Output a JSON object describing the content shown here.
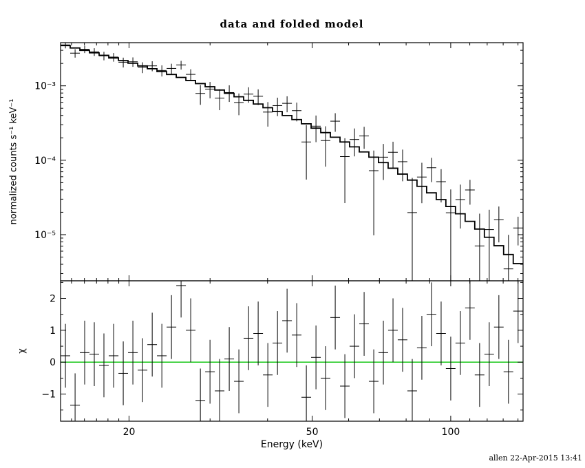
{
  "page": {
    "title": "data and folded model",
    "footer": "allen 22-Apr-2015 13:41",
    "xlabel": "Energy (keV)",
    "ylabel_top": "normalized counts s⁻¹ keV⁻¹",
    "ylabel_bottom": "χ"
  },
  "colors": {
    "foreground": "#000000",
    "zero_line": "#00c000",
    "background": "#ffffff"
  },
  "chart_data": {
    "type": "scatter",
    "title": "data and folded model",
    "xlabel": "Energy (keV)",
    "xscale": "log",
    "xlim": [
      14.2,
      143.6
    ],
    "xticks": [
      {
        "v": 20,
        "label": "20"
      },
      {
        "v": 50,
        "label": "50"
      },
      {
        "v": 100,
        "label": "100"
      }
    ],
    "xticks_minor": [
      15,
      16,
      17,
      18,
      19,
      30,
      40,
      60,
      70,
      80,
      90,
      110,
      120,
      130,
      140
    ],
    "bin_edges": [
      14.2,
      14.9,
      15.64,
      16.41,
      17.22,
      18.07,
      18.97,
      19.9,
      20.89,
      21.92,
      23.0,
      24.14,
      25.33,
      26.58,
      27.89,
      29.27,
      30.72,
      32.23,
      33.82,
      35.49,
      37.25,
      39.09,
      41.02,
      43.04,
      45.17,
      47.39,
      49.73,
      52.19,
      54.76,
      57.47,
      60.3,
      63.28,
      66.4,
      69.67,
      73.11,
      76.72,
      80.5,
      84.47,
      88.64,
      93.01,
      97.6,
      102.41,
      107.47,
      112.77,
      118.33,
      124.16,
      130.29,
      136.71,
      143.45
    ],
    "x": [
      14.55,
      15.27,
      16.02,
      16.81,
      17.64,
      18.52,
      19.43,
      20.39,
      21.4,
      22.46,
      23.57,
      24.73,
      25.95,
      27.23,
      28.58,
      29.99,
      31.47,
      33.02,
      34.65,
      36.37,
      38.16,
      40.05,
      42.03,
      44.1,
      46.28,
      48.56,
      50.96,
      53.47,
      56.11,
      58.88,
      61.79,
      64.84,
      68.04,
      71.39,
      74.92,
      78.61,
      82.49,
      86.55,
      90.83,
      95.31,
      100.01,
      104.94,
      110.12,
      115.55,
      121.25,
      127.23,
      133.5,
      140.08
    ],
    "panels": [
      {
        "name": "spectrum",
        "ylabel": "normalized counts s⁻¹ keV⁻¹",
        "yscale": "log",
        "ylim": [
          2.4e-06,
          0.0038
        ],
        "yticks": [
          {
            "v": 0.001,
            "label": "10⁻³"
          },
          {
            "v": 0.0001,
            "label": "10⁻⁴"
          },
          {
            "v": 1e-05,
            "label": "10⁻⁵"
          }
        ],
        "yticks_minor": [
          3e-06,
          4e-06,
          5e-06,
          6e-06,
          7e-06,
          8e-06,
          9e-06,
          2e-05,
          3e-05,
          4e-05,
          5e-05,
          6e-05,
          7e-05,
          8e-05,
          9e-05,
          0.0002,
          0.0003,
          0.0004,
          0.0005,
          0.0006,
          0.0007,
          0.0008,
          0.0009,
          0.002,
          0.003
        ],
        "series": [
          {
            "name": "data",
            "style": "cross",
            "y": [
              0.003546,
              0.002747,
              0.003098,
              0.002859,
              0.002533,
              0.002433,
              0.002077,
              0.002104,
              0.001776,
              0.001854,
              0.001609,
              0.001713,
              0.00191,
              0.001425,
              0.00079,
              0.000904,
              0.000685,
              0.000812,
              0.000596,
              0.000774,
              0.000724,
              0.000444,
              0.000542,
              0.000582,
              0.000464,
              0.000176,
              0.000287,
              0.000184,
              0.000335,
              0.000112,
              0.00019,
              0.000212,
              7.24e-05,
              0.00011,
              0.000128,
              9.56e-05,
              1.98e-05,
              5.95e-05,
              7.93e-05,
              5.15e-05,
              1.97e-05,
              2.96e-05,
              3.99e-05,
              7.06e-06,
              1.17e-05,
              1.59e-05,
              3.47e-06,
              1.23e-05
            ],
            "yerr": [
              0.000361,
              0.000355,
              0.000347,
              0.000338,
              0.000331,
              0.000322,
              0.000313,
              0.000304,
              0.000294,
              0.000285,
              0.000275,
              0.000266,
              0.000256,
              0.000245,
              0.000235,
              0.000224,
              0.000214,
              0.000204,
              0.000193,
              0.000182,
              0.000172,
              0.000161,
              0.000151,
              0.000141,
              0.000131,
              0.000121,
              0.000112,
              0.000102,
              9.38e-05,
              8.54e-05,
              7.73e-05,
              6.95e-05,
              6.26e-05,
              5.57e-05,
              4.94e-05,
              4.34e-05,
              3.81e-05,
              3.3e-05,
              2.85e-05,
              2.44e-05,
              2.08e-05,
              1.75e-05,
              1.46e-05,
              1.21e-05,
              9.92e-06,
              8.02e-06,
              6.47e-06,
              5.13e-06
            ]
          },
          {
            "name": "folded model",
            "style": "step",
            "y": [
              0.003474,
              0.003226,
              0.002994,
              0.002774,
              0.002566,
              0.002369,
              0.002186,
              0.002013,
              0.00185,
              0.001697,
              0.001554,
              0.001421,
              0.001297,
              0.00118,
              0.001072,
              0.000971,
              0.000878,
              0.000792,
              0.000712,
              0.000638,
              0.00057,
              0.000508,
              0.000451,
              0.000399,
              0.000352,
              0.000309,
              0.00027,
              0.000235,
              0.000204,
              0.000176,
              0.0001514,
              0.0001294,
              0.00011,
              9.3e-05,
              7.81e-05,
              6.52e-05,
              5.41e-05,
              4.46e-05,
              3.65e-05,
              2.96e-05,
              2.39e-05,
              1.91e-05,
              1.51e-05,
              1.19e-05,
              9.23e-06,
              7.1e-06,
              5.41e-06,
              4.08e-06
            ]
          }
        ]
      },
      {
        "name": "residuals",
        "ylabel": "χ",
        "yscale": "linear",
        "ylim": [
          -1.85,
          2.55
        ],
        "yticks": [
          {
            "v": -1,
            "label": "−1"
          },
          {
            "v": 0,
            "label": "0"
          },
          {
            "v": 1,
            "label": "1"
          },
          {
            "v": 2,
            "label": "2"
          }
        ],
        "yticks_minor": [
          -1.5,
          -0.5,
          0.5,
          1.5,
          2.5
        ],
        "series": [
          {
            "name": "chi",
            "style": "cross",
            "y": [
              0.2,
              -1.35,
              0.3,
              0.25,
              -0.1,
              0.2,
              -0.35,
              0.3,
              -0.25,
              0.55,
              0.2,
              1.1,
              2.4,
              1.0,
              -1.2,
              -0.3,
              -0.9,
              0.1,
              -0.6,
              0.75,
              0.9,
              -0.4,
              0.6,
              1.3,
              0.85,
              -1.1,
              0.15,
              -0.5,
              1.4,
              -0.75,
              0.5,
              1.2,
              -0.6,
              0.3,
              1.0,
              0.7,
              -0.9,
              0.45,
              1.5,
              0.9,
              -0.2,
              0.6,
              1.7,
              -0.4,
              0.25,
              1.1,
              -0.3,
              1.6
            ],
            "yerr_const": 1.0
          },
          {
            "name": "zero line",
            "style": "hline",
            "y0": 0,
            "color": "#00c000"
          }
        ]
      }
    ]
  }
}
